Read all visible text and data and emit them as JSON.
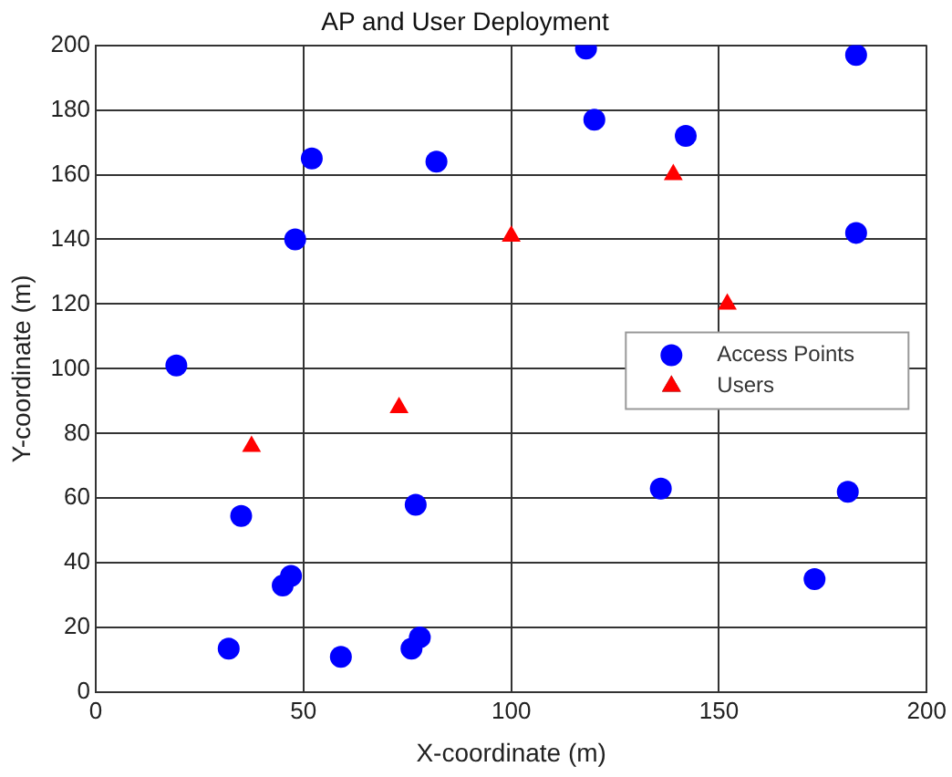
{
  "chart_data": {
    "type": "scatter",
    "title": "AP and User Deployment",
    "xlabel": "X-coordinate (m)",
    "ylabel": "Y-coordinate (m)",
    "xlim": [
      0,
      200
    ],
    "xticks": [
      0,
      50,
      100,
      150,
      200
    ],
    "ylim": [
      0,
      200
    ],
    "yticks": [
      0,
      20,
      40,
      60,
      80,
      100,
      120,
      140,
      160,
      180,
      200
    ],
    "grid": true,
    "legend": "right",
    "series": [
      {
        "name": "Access Points",
        "color": "#0000ff",
        "marker": "circle",
        "x": [
          19.4,
          35,
          48,
          52,
          82,
          118,
          120,
          142,
          183,
          183,
          136,
          181,
          173,
          77,
          47,
          45,
          32,
          59,
          76,
          78
        ],
        "values": [
          101,
          54.5,
          140,
          165,
          164,
          199,
          177,
          172,
          197,
          142,
          63,
          62,
          35,
          58,
          36,
          33,
          13.5,
          11,
          13.5,
          17
        ]
      },
      {
        "name": "Users",
        "color": "#ff0000",
        "marker": "triangle",
        "x": [
          37.5,
          73,
          100,
          139,
          152
        ],
        "values": [
          76,
          88,
          141,
          160,
          120
        ]
      }
    ]
  }
}
